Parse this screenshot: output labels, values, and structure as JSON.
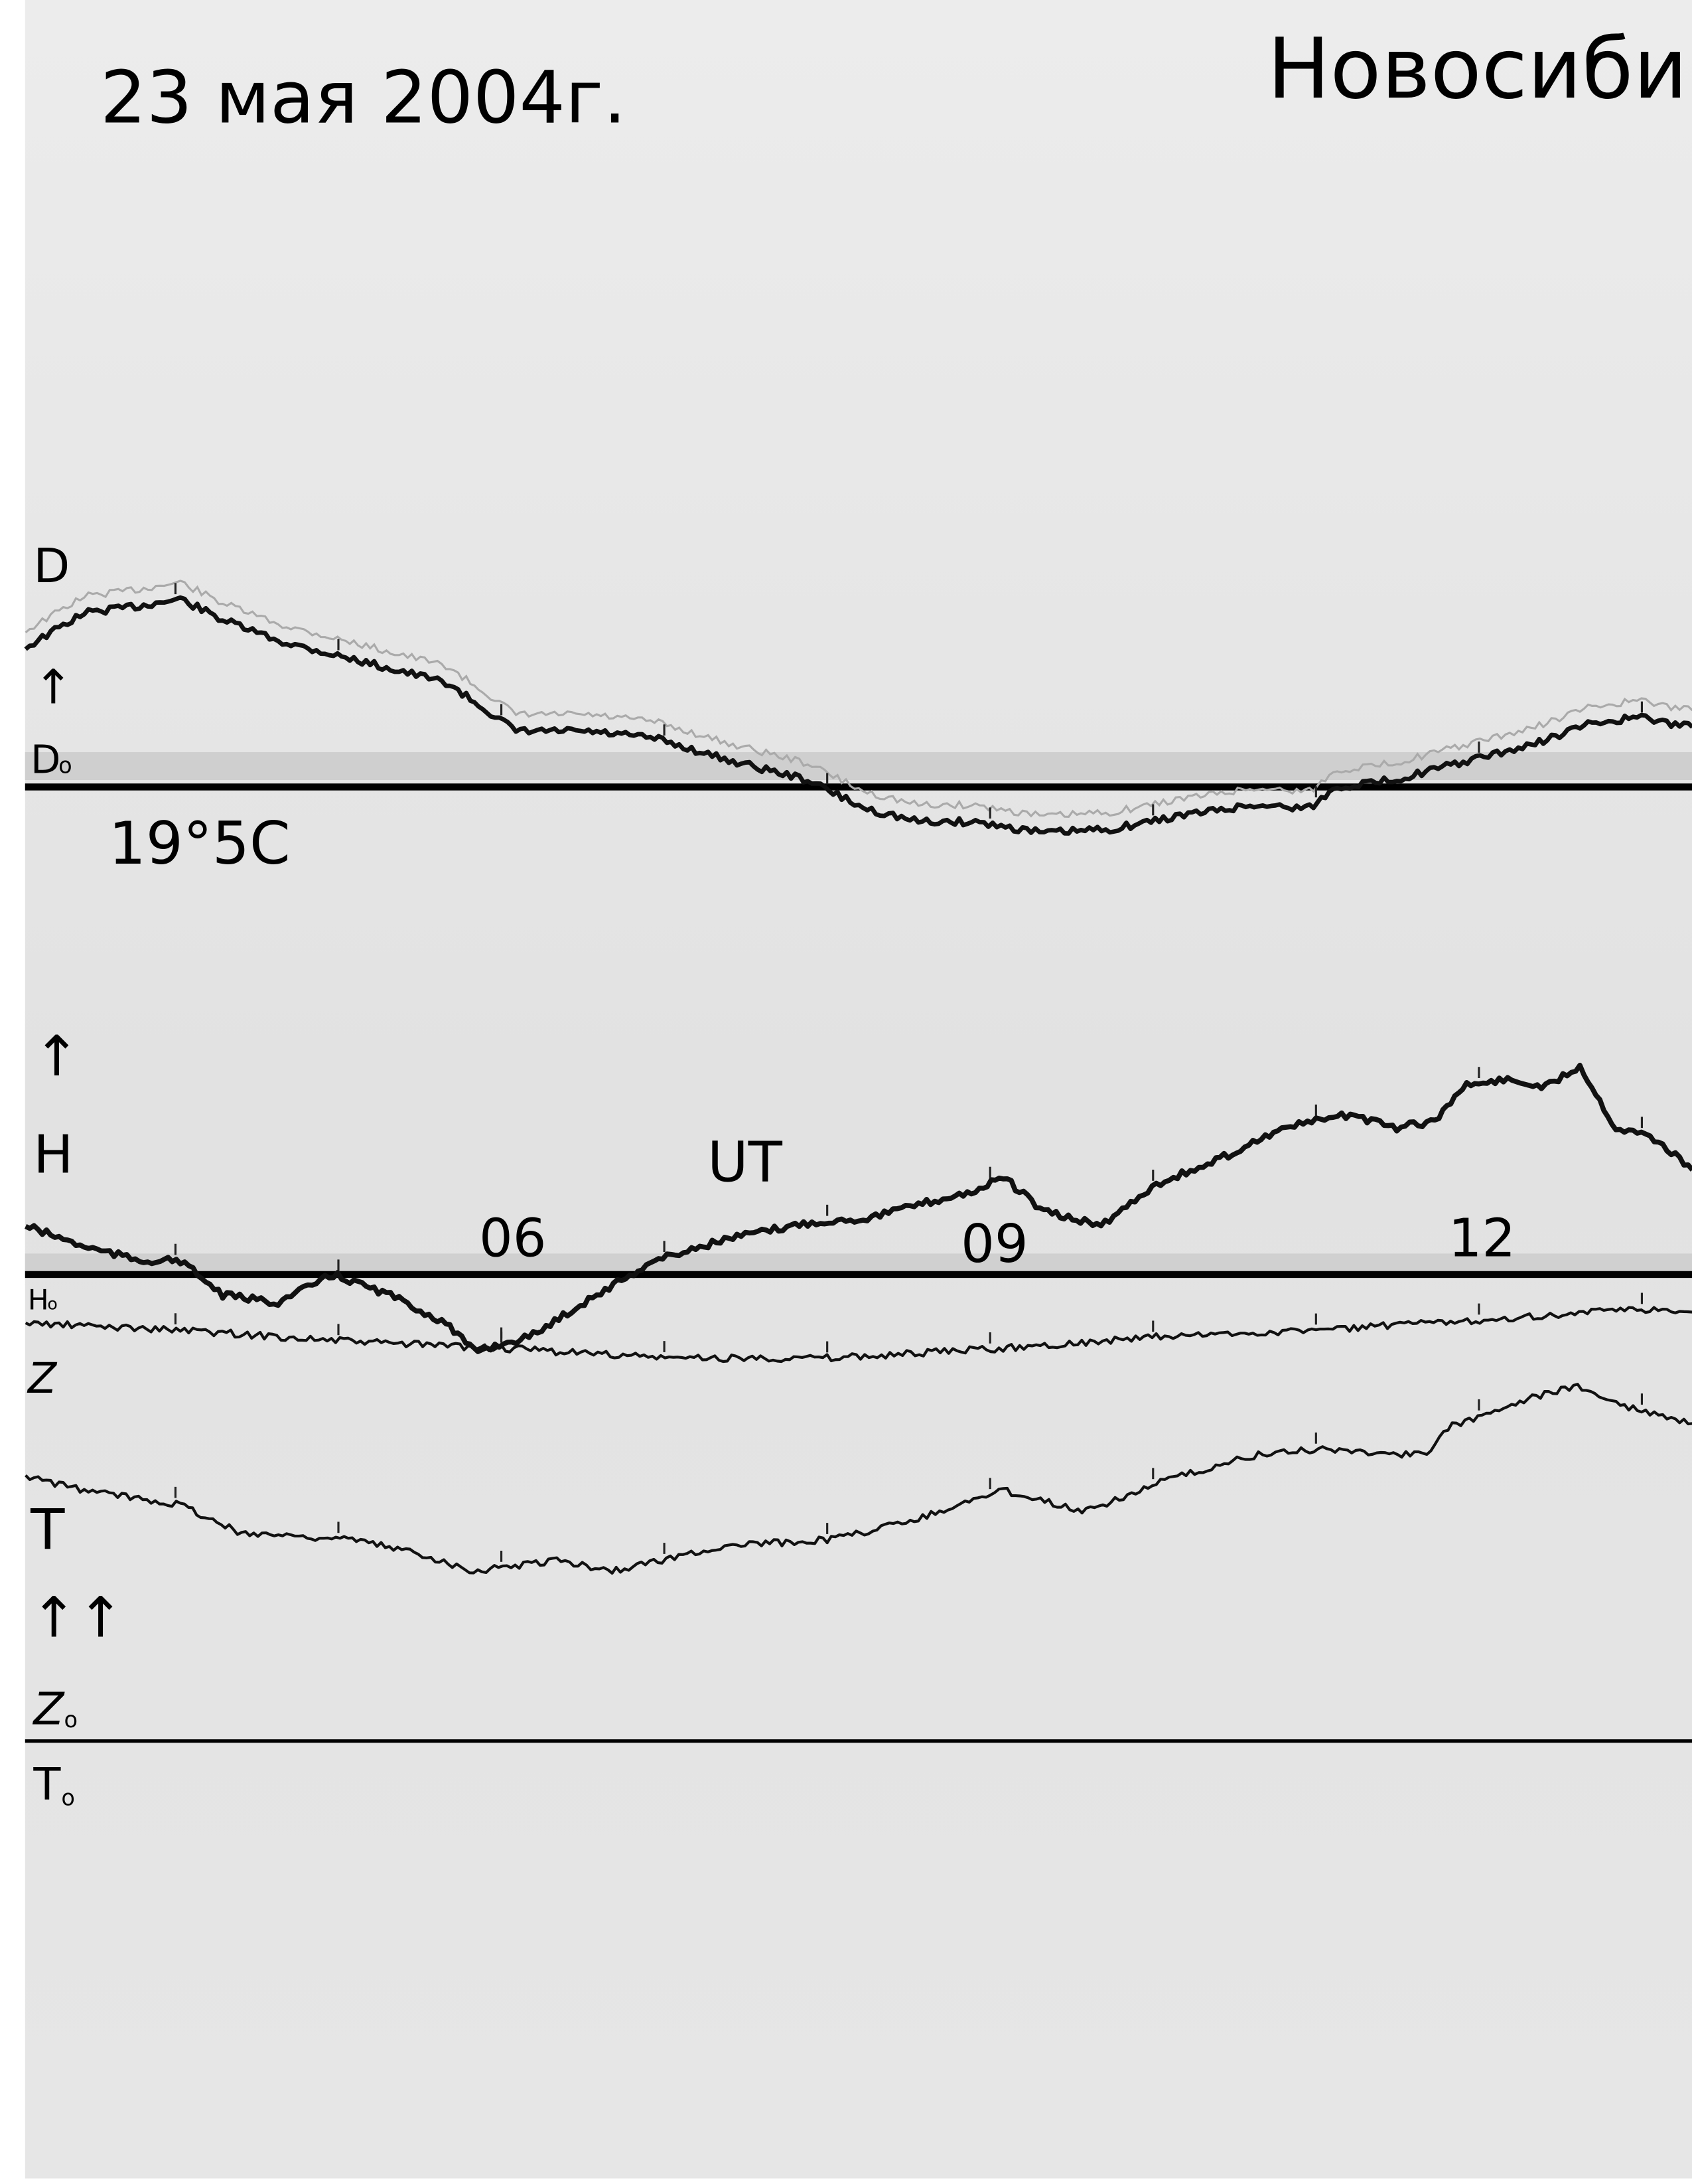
{
  "header": {
    "date": "23 мая 2004г.",
    "station": "Новосиби"
  },
  "labels": {
    "d": "D",
    "d_arrow": "↑",
    "d0": "D",
    "d0_sub": "o",
    "temperature": "19°5C",
    "h_arrow": "↑",
    "h": "H",
    "ut": "UT",
    "h0": "H",
    "h0_sub": "o",
    "z": "Z",
    "t": "T",
    "zt_arrows": "↑↑",
    "z0": "Z",
    "z0_sub": "o",
    "t0": "T",
    "t0_sub": "o"
  },
  "chart_data": {
    "type": "line",
    "xlabel": "UT",
    "x_tick_labels": [
      "06",
      "09",
      "12"
    ],
    "x_ticks": [
      6,
      9,
      12
    ],
    "xlim": [
      3.08,
      13.31
    ],
    "hour_marks": [
      4,
      5,
      6,
      7,
      8,
      9,
      10,
      11,
      12,
      13
    ],
    "grid": false,
    "colors": {
      "paper": "#e6e6e6",
      "trace": "#111111",
      "ink": "#000000"
    },
    "series": [
      {
        "name": "D",
        "baseline": "D0",
        "x": [
          3.08,
          3.44,
          3.78,
          4.03,
          4.29,
          4.63,
          4.97,
          5.32,
          5.66,
          5.91,
          6.09,
          6.51,
          6.94,
          7.37,
          7.88,
          8.22,
          8.56,
          8.91,
          9.33,
          9.76,
          10.19,
          10.62,
          10.96,
          11.13,
          11.47,
          11.98,
          12.32,
          12.67,
          12.97,
          13.31
        ],
        "y": [
          10.0,
          12.5,
          13.0,
          13.5,
          12.0,
          10.5,
          9.5,
          8.5,
          7.5,
          5.5,
          4.0,
          4.0,
          3.5,
          2.0,
          0.5,
          -1.5,
          -2.5,
          -2.5,
          -3.3,
          -3.0,
          -2.0,
          -1.3,
          -1.5,
          0,
          0.5,
          2.0,
          3.0,
          4.5,
          5.0,
          4.3
        ]
      },
      {
        "name": "H",
        "baseline": "H0",
        "x": [
          3.08,
          3.44,
          3.78,
          4.03,
          4.29,
          4.63,
          4.97,
          5.32,
          5.66,
          5.83,
          6.17,
          6.51,
          6.94,
          7.37,
          7.88,
          8.22,
          8.56,
          8.91,
          9.08,
          9.33,
          9.68,
          10.02,
          10.36,
          10.79,
          11.0,
          11.21,
          11.47,
          11.73,
          11.9,
          12.15,
          12.41,
          12.62,
          12.84,
          13.05,
          13.31
        ],
        "y": [
          3.5,
          2.0,
          1.0,
          1.0,
          -1.5,
          -2.0,
          0,
          -1.5,
          -3.5,
          -5.5,
          -4.5,
          -2.0,
          1.0,
          2.5,
          3.7,
          4.0,
          5.0,
          6.0,
          7.0,
          4.5,
          3.5,
          6.5,
          8.0,
          10.5,
          11.0,
          11.5,
          10.5,
          11.0,
          13.5,
          14.0,
          13.5,
          15.0,
          10.5,
          10.0,
          7.5
        ]
      },
      {
        "name": "Z",
        "baseline": "Z0",
        "x": [
          3.08,
          4.03,
          5.06,
          6.0,
          7.03,
          8.05,
          9.08,
          10.02,
          11.0,
          11.98,
          12.97,
          13.31
        ],
        "y": [
          30,
          29.5,
          28.7,
          28.2,
          27.5,
          27.5,
          28.2,
          29,
          29.5,
          30.2,
          31,
          30.8
        ]
      },
      {
        "name": "T",
        "baseline": "T0",
        "x": [
          3.08,
          3.44,
          4.03,
          4.38,
          5.06,
          5.49,
          5.83,
          6.34,
          6.68,
          7.37,
          8.05,
          8.56,
          9.08,
          9.59,
          10.02,
          10.62,
          11.04,
          11.68,
          11.81,
          12.15,
          12.58,
          12.92,
          13.31
        ],
        "y": [
          19,
          18,
          17,
          15,
          14.5,
          13.5,
          12.2,
          13,
          12.2,
          14,
          14.5,
          16,
          18,
          16.5,
          18.5,
          20.5,
          21,
          20.5,
          22.5,
          24,
          25.5,
          24,
          22.8
        ]
      }
    ]
  }
}
